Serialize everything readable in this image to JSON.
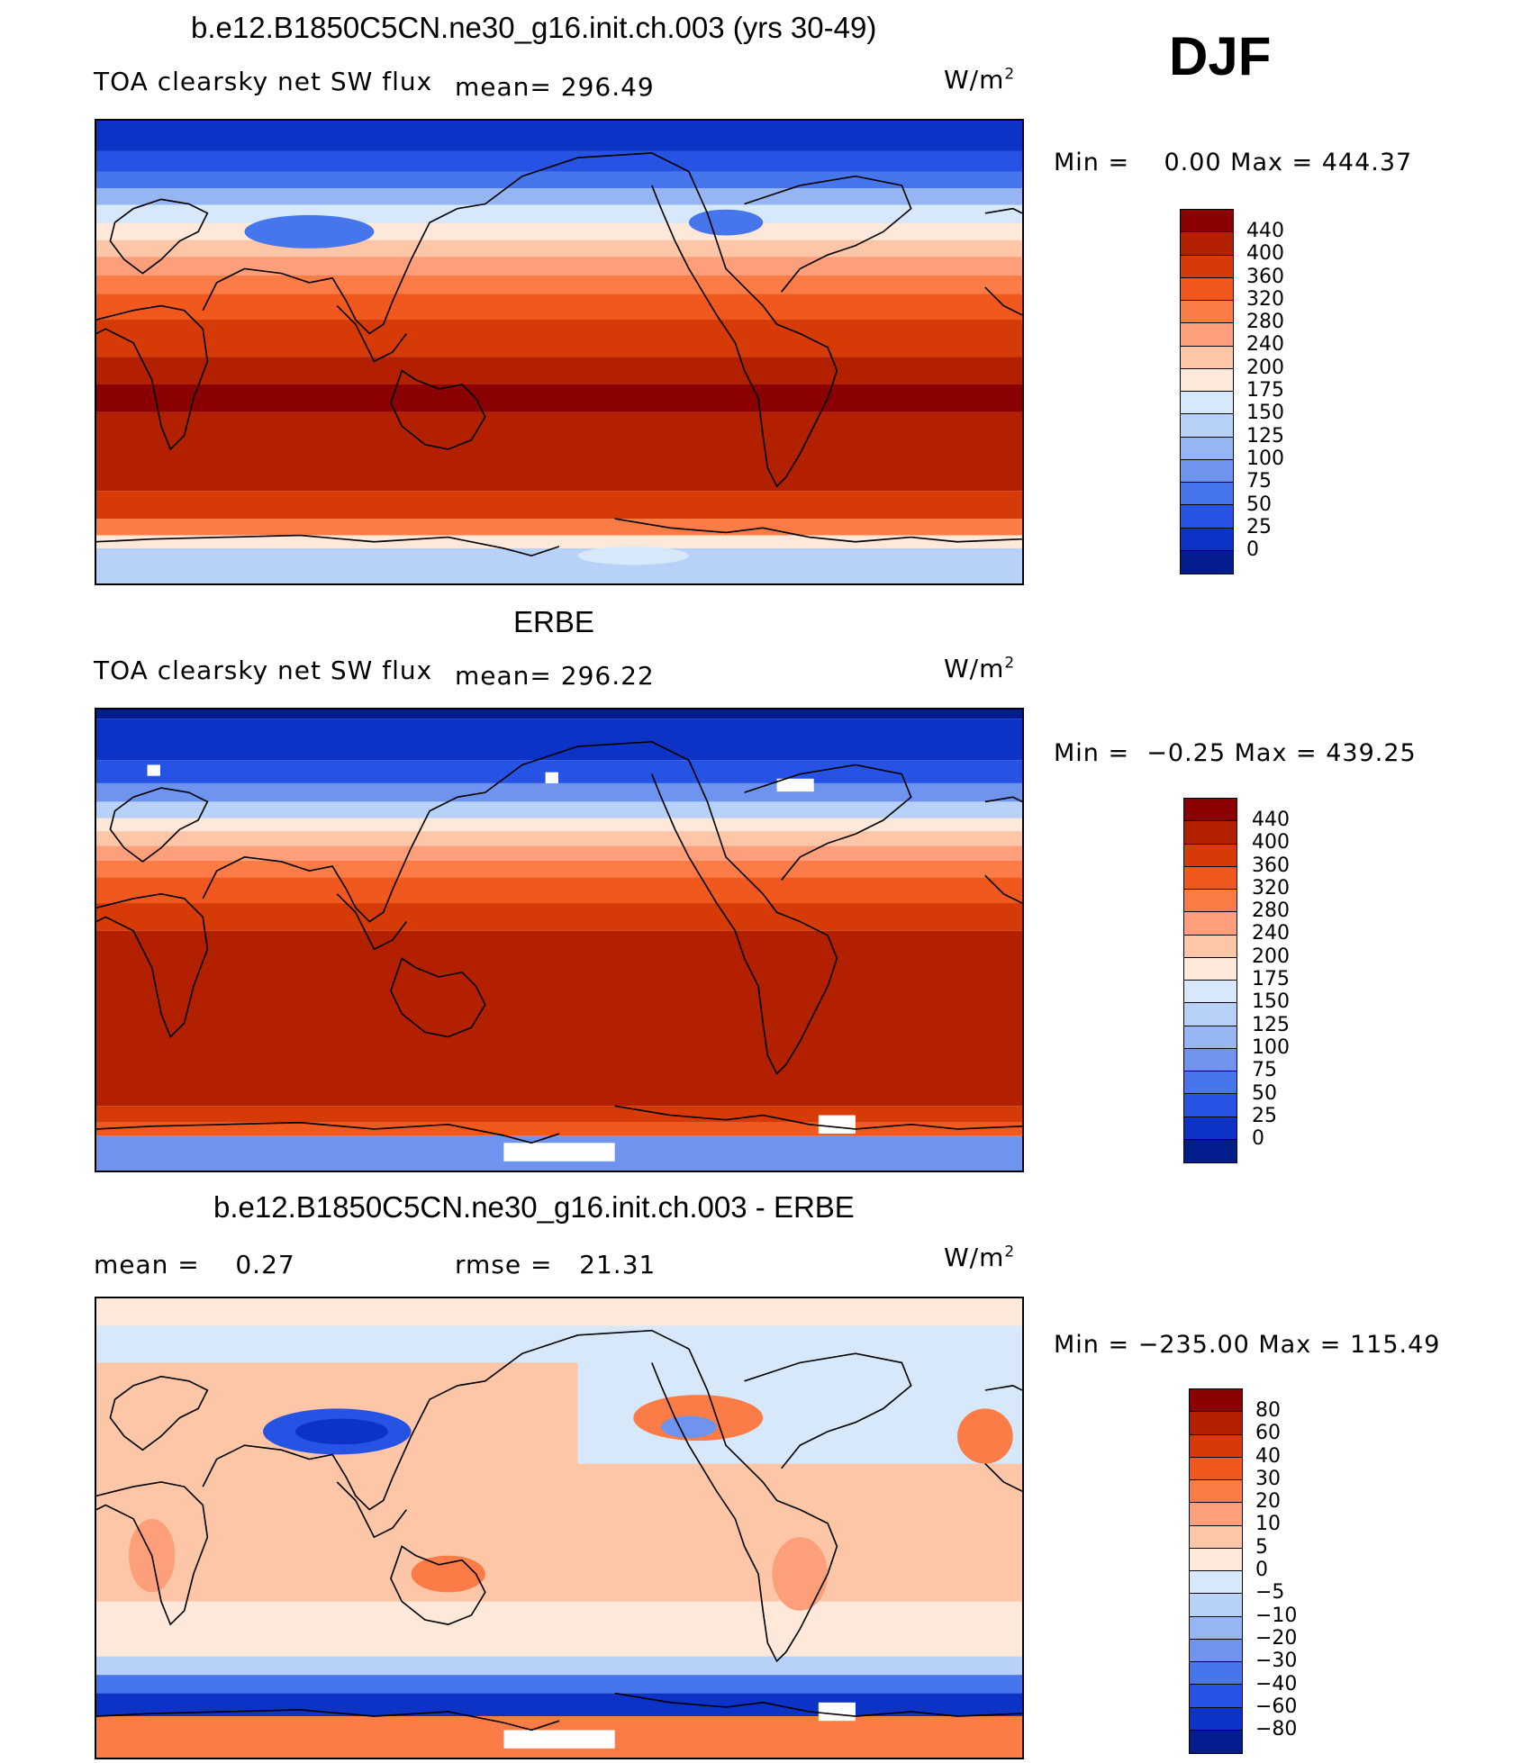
{
  "season": "DJF",
  "panels": [
    {
      "id": "model",
      "title": "b.e12.B1850C5CN.ne30_g16.init.ch.003 (yrs 30-49)",
      "variable": "TOA clearsky net SW flux",
      "stat1": "mean= 296.49",
      "stat2": "",
      "units": "W/m",
      "units_sup": "2",
      "minmax": "Min =    0.00 Max = 444.37",
      "legend": [
        "440",
        "400",
        "360",
        "320",
        "280",
        "240",
        "200",
        "175",
        "150",
        "125",
        "100",
        "75",
        "50",
        "25",
        "0"
      ],
      "legend_colors": [
        "#8b0000",
        "#b22000",
        "#d63a07",
        "#f1581d",
        "#fb7c46",
        "#fc9f7a",
        "#fdc7a7",
        "#fde8da",
        "#d8e8fb",
        "#b7d1f8",
        "#95b6f3",
        "#6e94ef",
        "#4775ec",
        "#2653e3",
        "#0d33c6",
        "#031c8e"
      ]
    },
    {
      "id": "obs",
      "title": "ERBE",
      "variable": "TOA clearsky net SW flux",
      "stat1": "mean= 296.22",
      "stat2": "",
      "units": "W/m",
      "units_sup": "2",
      "minmax": "Min =  −0.25 Max = 439.25",
      "legend": [
        "440",
        "400",
        "360",
        "320",
        "280",
        "240",
        "200",
        "175",
        "150",
        "125",
        "100",
        "75",
        "50",
        "25",
        "0"
      ],
      "legend_colors": [
        "#8b0000",
        "#b22000",
        "#d63a07",
        "#f1581d",
        "#fb7c46",
        "#fc9f7a",
        "#fdc7a7",
        "#fde8da",
        "#d8e8fb",
        "#b7d1f8",
        "#95b6f3",
        "#6e94ef",
        "#4775ec",
        "#2653e3",
        "#0d33c6",
        "#031c8e"
      ]
    },
    {
      "id": "diff",
      "title": "b.e12.B1850C5CN.ne30_g16.init.ch.003 - ERBE",
      "variable": "mean =    0.27",
      "stat1": "rmse =   21.31",
      "stat2": "",
      "units": "W/m",
      "units_sup": "2",
      "minmax": "Min = −235.00 Max = 115.49",
      "legend": [
        "80",
        "60",
        "40",
        "30",
        "20",
        "10",
        "5",
        "0",
        "−5",
        "−10",
        "−20",
        "−30",
        "−40",
        "−60",
        "−80"
      ],
      "legend_colors": [
        "#8b0000",
        "#b22000",
        "#d63a07",
        "#f1581d",
        "#fb7c46",
        "#fc9f7a",
        "#fdc7a7",
        "#fde8da",
        "#d8e8fb",
        "#b7d1f8",
        "#95b6f3",
        "#6e94ef",
        "#4775ec",
        "#2653e3",
        "#0d33c6",
        "#031c8e"
      ]
    }
  ]
}
